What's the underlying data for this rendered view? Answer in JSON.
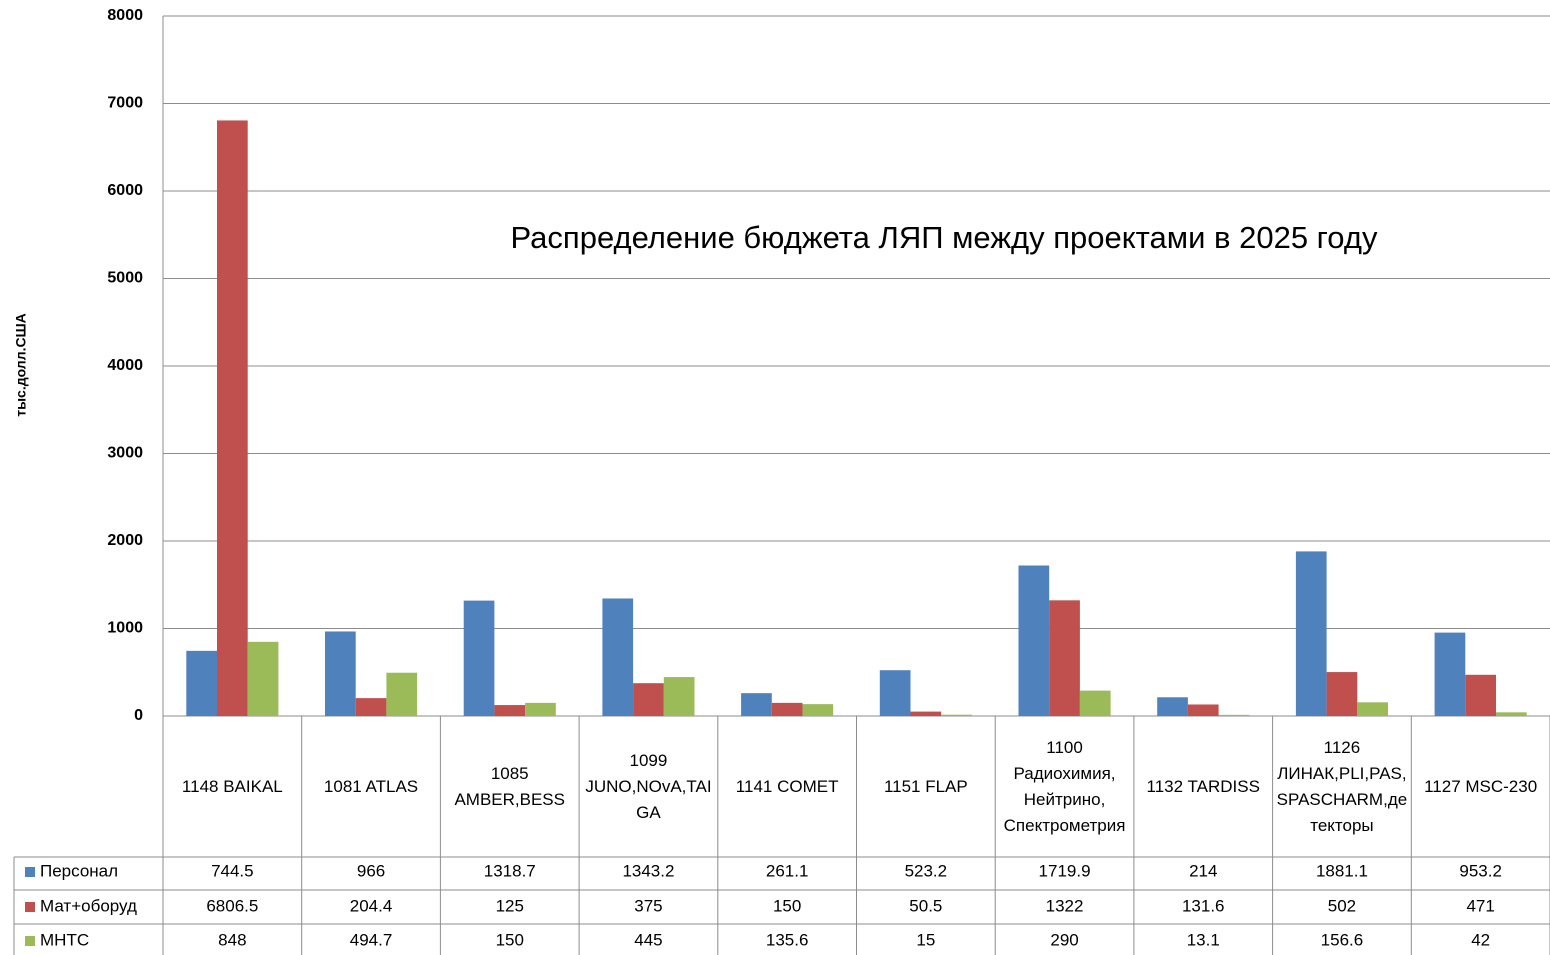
{
  "chart_data": {
    "type": "bar",
    "title": "Распределение бюджета ЛЯП между проектами в 2025 году",
    "y_label": "тыс.долл.США",
    "categories": [
      "1148 BAIKAL",
      "1081 ATLAS",
      "1085 AMBER,BESS",
      "1099 JUNO,NOvA,TAIGA",
      "1141 COMET",
      "1151 FLAP",
      "1100 Радиохимия, Нейтрино, Спектрометрия",
      "1132 TARDISS",
      "1126 ЛИНАК,PLI,PAS,SPASCHARM,детекторы",
      "1127 MSC-230"
    ],
    "series": [
      {
        "name": "Персонал",
        "color": "#4f81bd",
        "values": [
          744.5,
          966,
          1318.7,
          1343.2,
          261.1,
          523.2,
          1719.9,
          214,
          1881.1,
          953.2
        ]
      },
      {
        "name": "Мат+оборуд",
        "color": "#c0504d",
        "values": [
          6806.5,
          204.4,
          125,
          375,
          150,
          50.5,
          1322,
          131.6,
          502,
          471
        ]
      },
      {
        "name": "МНТС",
        "color": "#9bbb59",
        "values": [
          848,
          494.7,
          150,
          445,
          135.6,
          15,
          290,
          13.1,
          156.6,
          42
        ]
      }
    ],
    "ylim": [
      0,
      8000
    ],
    "yticks": [
      0,
      1000,
      2000,
      3000,
      4000,
      5000,
      6000,
      7000,
      8000
    ],
    "grid": true,
    "data_table": true
  }
}
